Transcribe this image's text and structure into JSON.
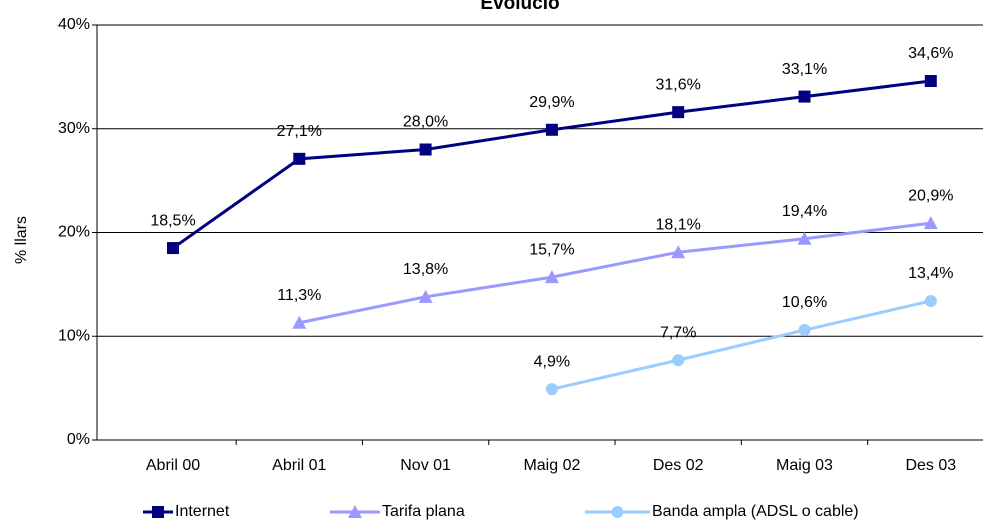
{
  "chart_data": {
    "type": "line",
    "title": "Evolució",
    "y_label": "% llars",
    "categories": [
      "Abril 00",
      "Abril 01",
      "Nov 01",
      "Maig 02",
      "Des 02",
      "Maig 03",
      "Des 03"
    ],
    "series": [
      {
        "name": "Internet",
        "color": "#000080",
        "marker": "square",
        "values": [
          18.5,
          27.1,
          28.0,
          29.9,
          31.6,
          33.1,
          34.6
        ],
        "value_labels": [
          "18,5%",
          "27,1%",
          "28,0%",
          "29,9%",
          "31,6%",
          "33,1%",
          "34,6%"
        ]
      },
      {
        "name": "Tarifa plana",
        "color": "#9999ff",
        "marker": "triangle",
        "values": [
          null,
          11.3,
          13.8,
          15.7,
          18.1,
          19.4,
          20.9
        ],
        "value_labels": [
          null,
          "11,3%",
          "13,8%",
          "15,7%",
          "18,1%",
          "19,4%",
          "20,9%"
        ]
      },
      {
        "name": "Banda ampla (ADSL o cable)",
        "color": "#99ccff",
        "marker": "circle",
        "values": [
          null,
          null,
          null,
          4.9,
          7.7,
          10.6,
          13.4
        ],
        "value_labels": [
          null,
          null,
          null,
          "4,9%",
          "7,7%",
          "10,6%",
          "13,4%"
        ]
      }
    ],
    "ylim": [
      0,
      40
    ],
    "yticks": [
      {
        "value": 0,
        "label": "0%"
      },
      {
        "value": 10,
        "label": "10%"
      },
      {
        "value": 20,
        "label": "20%"
      },
      {
        "value": 30,
        "label": "30%"
      },
      {
        "value": 40,
        "label": "40%"
      }
    ],
    "grid": true,
    "legend": "bottom"
  }
}
